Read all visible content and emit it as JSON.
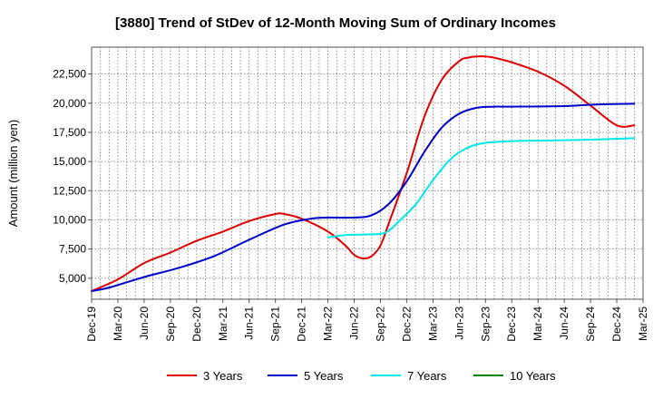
{
  "chart_data": {
    "type": "line",
    "title": "[3880]  Trend of StDev of 12-Month Moving Sum of Ordinary Incomes",
    "xlabel": "",
    "ylabel": "Amount (million yen)",
    "ylim": [
      3200,
      24800
    ],
    "yticks": [
      5000,
      7500,
      10000,
      12500,
      15000,
      17500,
      20000,
      22500
    ],
    "ytick_labels": [
      "5,000",
      "7,500",
      "10,000",
      "12,500",
      "15,000",
      "17,500",
      "20,000",
      "22,500"
    ],
    "x_tick_labels": [
      "Dec-19",
      "Mar-20",
      "Jun-20",
      "Sep-20",
      "Dec-20",
      "Mar-21",
      "Jun-21",
      "Sep-21",
      "Dec-21",
      "Mar-22",
      "Jun-22",
      "Sep-22",
      "Dec-22",
      "Mar-23",
      "Jun-23",
      "Sep-23",
      "Dec-23",
      "Mar-24",
      "Jun-24",
      "Sep-24",
      "Dec-24",
      "Mar-25"
    ],
    "x_range_months": [
      0,
      63
    ],
    "grid": true,
    "legend_position": "bottom",
    "series": [
      {
        "name": "3 Years",
        "color": "#e00000",
        "x": [
          0,
          3,
          6,
          9,
          12,
          15,
          18,
          21,
          22,
          24,
          27,
          29,
          30,
          31,
          32,
          33,
          34,
          36,
          38,
          40,
          42,
          43,
          44,
          45,
          46,
          48,
          51,
          54,
          57,
          60,
          62
        ],
        "y": [
          3900,
          4900,
          6300,
          7200,
          8200,
          9000,
          9900,
          10500,
          10500,
          10100,
          9000,
          7800,
          7000,
          6700,
          6900,
          7800,
          9800,
          14000,
          18800,
          22000,
          23600,
          23900,
          24000,
          24000,
          23900,
          23500,
          22700,
          21500,
          19800,
          18100,
          18100
        ]
      },
      {
        "name": "5 Years",
        "color": "#0000cc",
        "x": [
          0,
          2,
          6,
          10,
          14,
          18,
          22,
          25,
          27,
          30,
          32,
          34,
          36,
          38,
          40,
          42,
          44,
          46,
          48,
          54,
          58,
          62
        ],
        "y": [
          3900,
          4200,
          5100,
          5900,
          6900,
          8300,
          9600,
          10100,
          10200,
          10200,
          10400,
          11400,
          13300,
          15800,
          17900,
          19100,
          19600,
          19700,
          19700,
          19750,
          19900,
          19950
        ]
      },
      {
        "name": "7 Years",
        "color": "#00e8e8",
        "x": [
          27,
          29,
          31,
          33,
          34,
          35,
          37,
          39,
          41,
          43,
          45,
          48,
          52,
          56,
          62
        ],
        "y": [
          8500,
          8700,
          8750,
          8800,
          9100,
          9800,
          11300,
          13400,
          15200,
          16200,
          16600,
          16750,
          16800,
          16850,
          17000
        ]
      },
      {
        "name": "10 Years",
        "color": "#008000",
        "x": [],
        "y": []
      }
    ]
  }
}
